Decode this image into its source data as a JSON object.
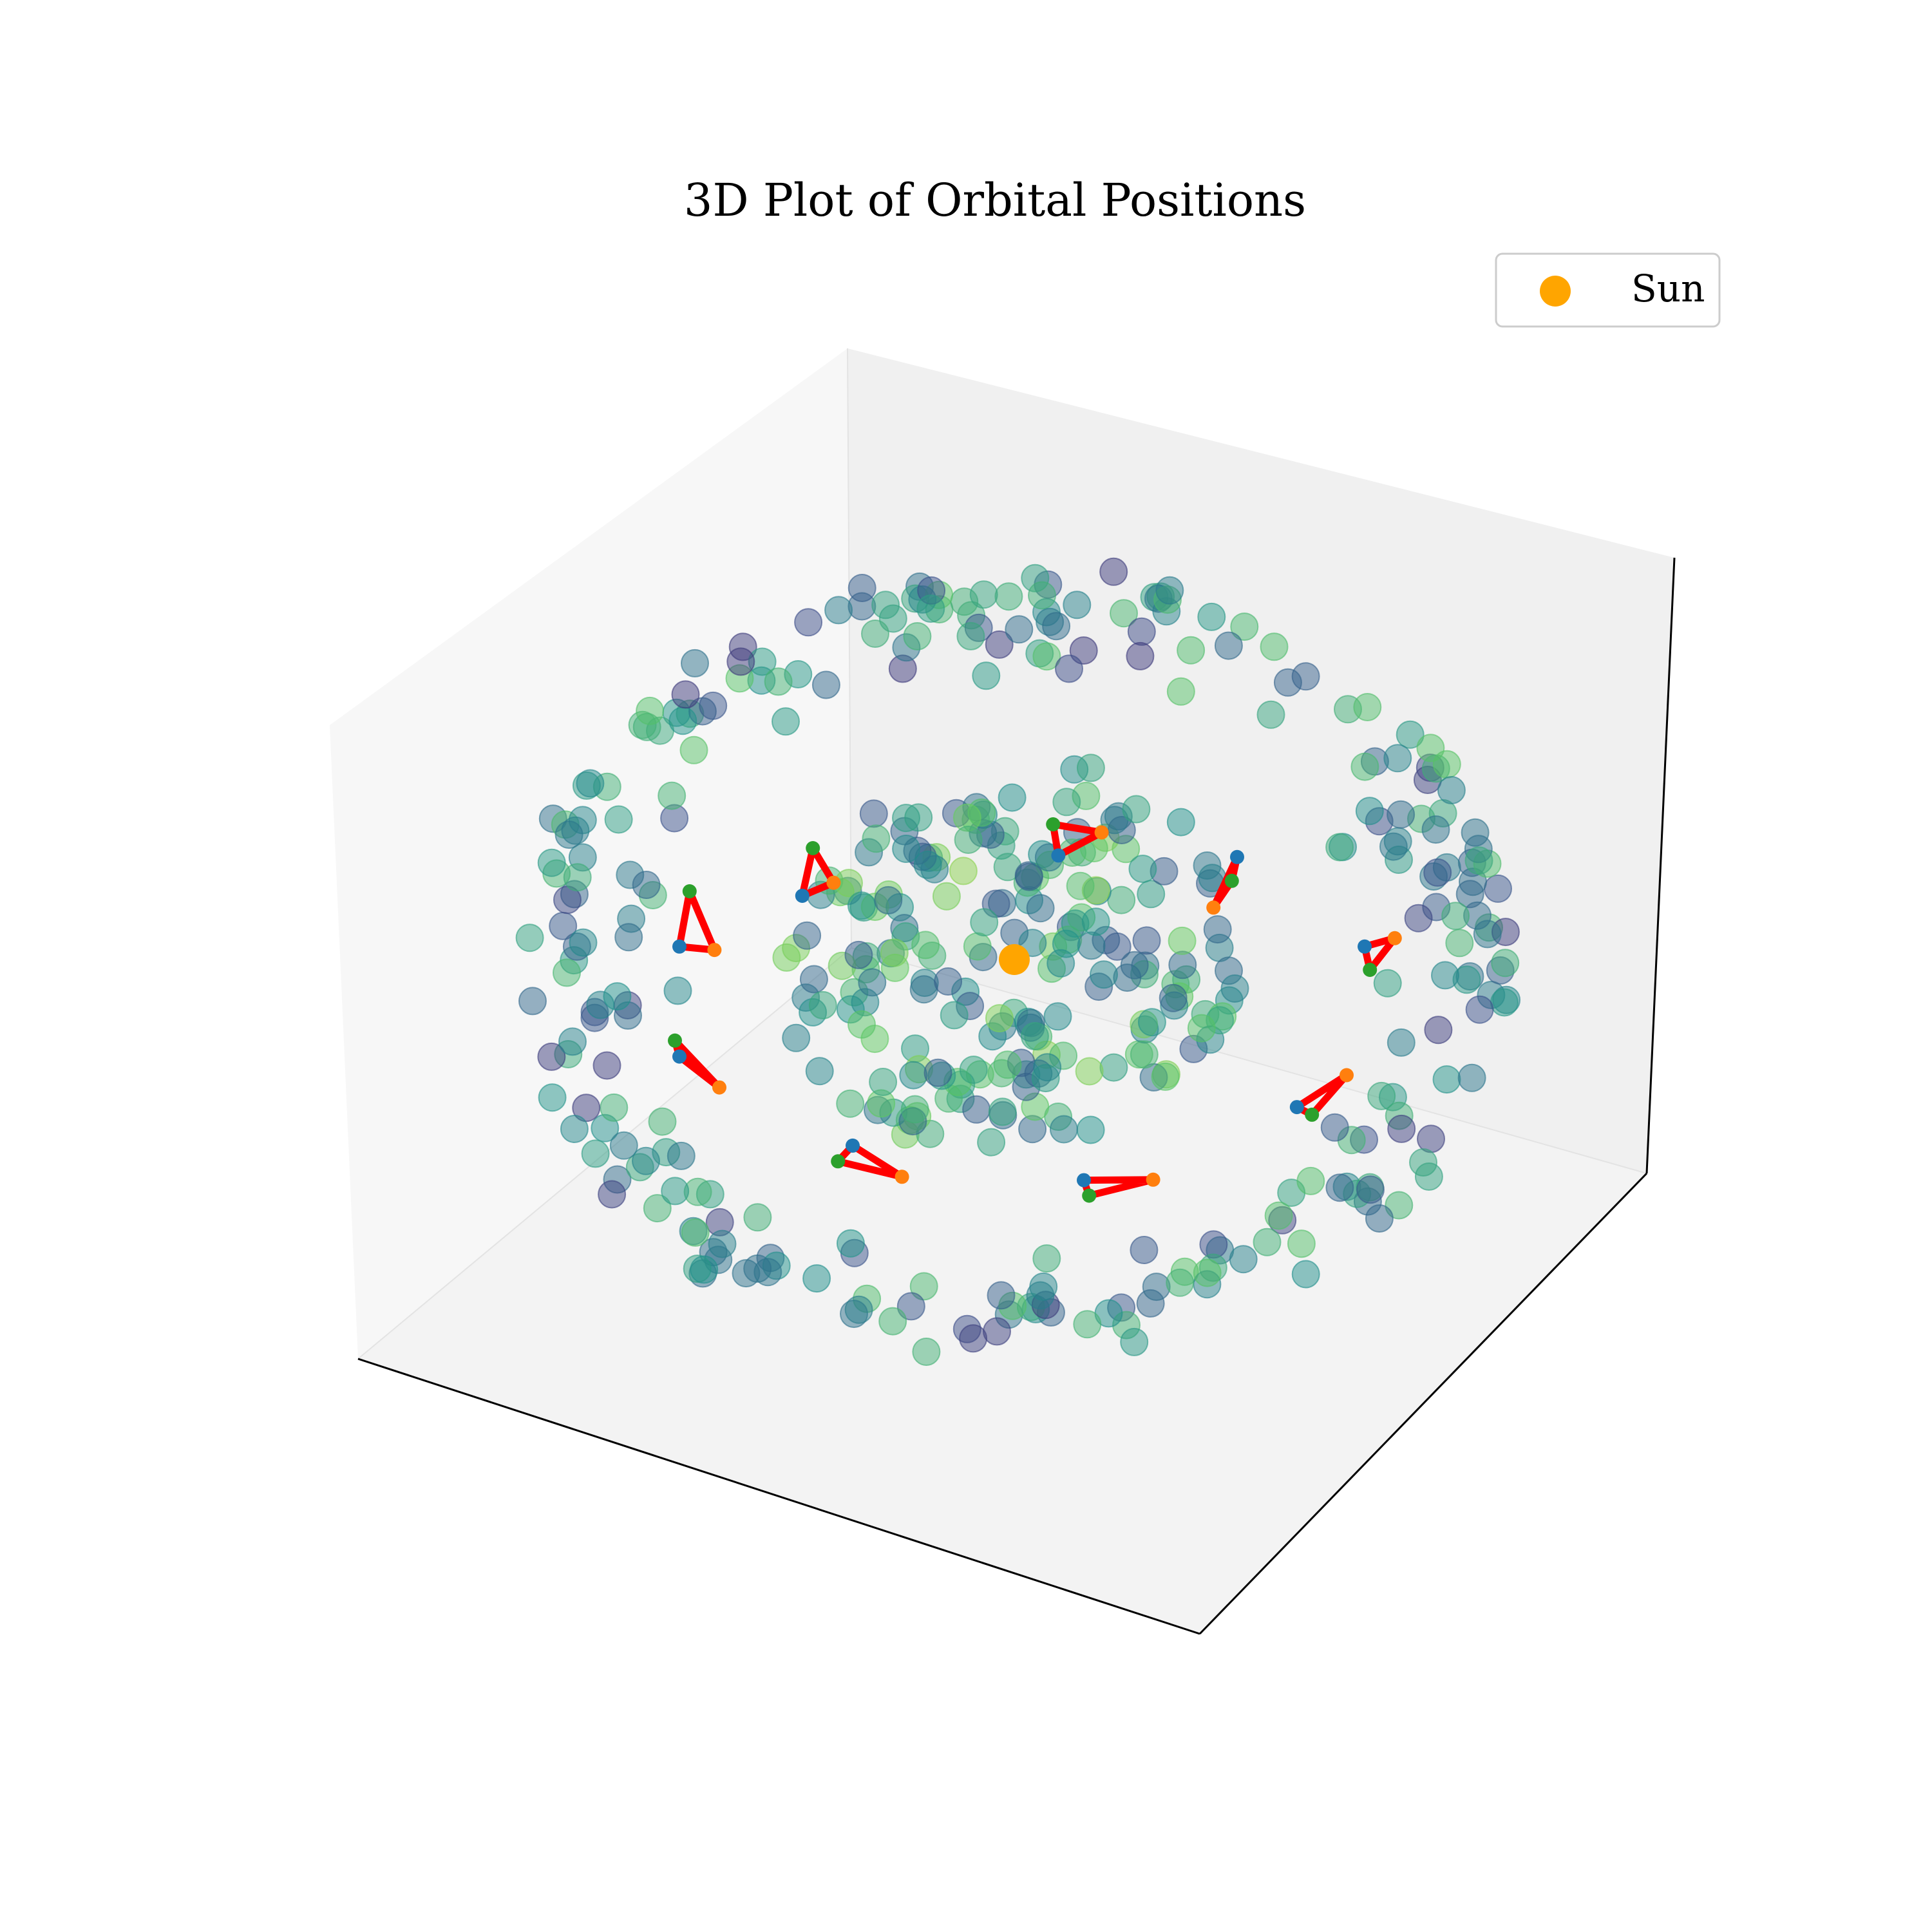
{
  "chart_data": {
    "type": "scatter",
    "title": "3D Plot of Orbital Positions",
    "projection": "3d",
    "axis_ticks_visible": false,
    "grid": false,
    "legend": {
      "position": "top-right",
      "entries": [
        {
          "label": "Sun",
          "color": "#ffa500",
          "marker": "circle"
        }
      ]
    },
    "sun": {
      "x": 0,
      "y": 0,
      "z": 0,
      "color": "#ffa500"
    },
    "background_points": {
      "count": 480,
      "distribution": "spherical shell",
      "radius": 1.0,
      "colormap": "viridis",
      "alpha": 0.5
    },
    "triangle_groups": [
      {
        "points": [
          [
            -0.46,
            0.34,
            0.14
          ],
          [
            -0.44,
            0.36,
            0.26
          ],
          [
            -0.4,
            0.39,
            0.17
          ]
        ]
      },
      {
        "points": [
          [
            0.06,
            0.38,
            0.24
          ],
          [
            0.05,
            0.37,
            0.32
          ],
          [
            0.15,
            0.36,
            0.3
          ]
        ]
      },
      {
        "points": [
          [
            0.43,
            0.32,
            0.24
          ],
          [
            0.42,
            0.31,
            0.18
          ],
          [
            0.38,
            0.34,
            0.11
          ]
        ]
      },
      {
        "points": [
          [
            -0.7,
            0.2,
            0.02
          ],
          [
            -0.68,
            0.21,
            0.16
          ],
          [
            -0.63,
            0.22,
            0.01
          ]
        ]
      },
      {
        "points": [
          [
            0.7,
            0.2,
            0.02
          ],
          [
            0.71,
            0.21,
            -0.04
          ],
          [
            0.76,
            0.22,
            0.04
          ]
        ]
      },
      {
        "points": [
          [
            -0.7,
            0.2,
            -0.26
          ],
          [
            -0.71,
            0.21,
            -0.22
          ],
          [
            -0.62,
            0.22,
            -0.34
          ]
        ]
      },
      {
        "points": [
          [
            0.56,
            0.22,
            -0.39
          ],
          [
            0.59,
            0.23,
            -0.41
          ],
          [
            0.66,
            0.24,
            -0.31
          ]
        ]
      },
      {
        "points": [
          [
            -0.35,
            0.25,
            -0.49
          ],
          [
            -0.38,
            0.25,
            -0.53
          ],
          [
            -0.25,
            0.26,
            -0.57
          ]
        ]
      },
      {
        "points": [
          [
            0.12,
            0.28,
            -0.58
          ],
          [
            0.13,
            0.29,
            -0.62
          ],
          [
            0.26,
            0.3,
            -0.58
          ]
        ]
      }
    ]
  }
}
